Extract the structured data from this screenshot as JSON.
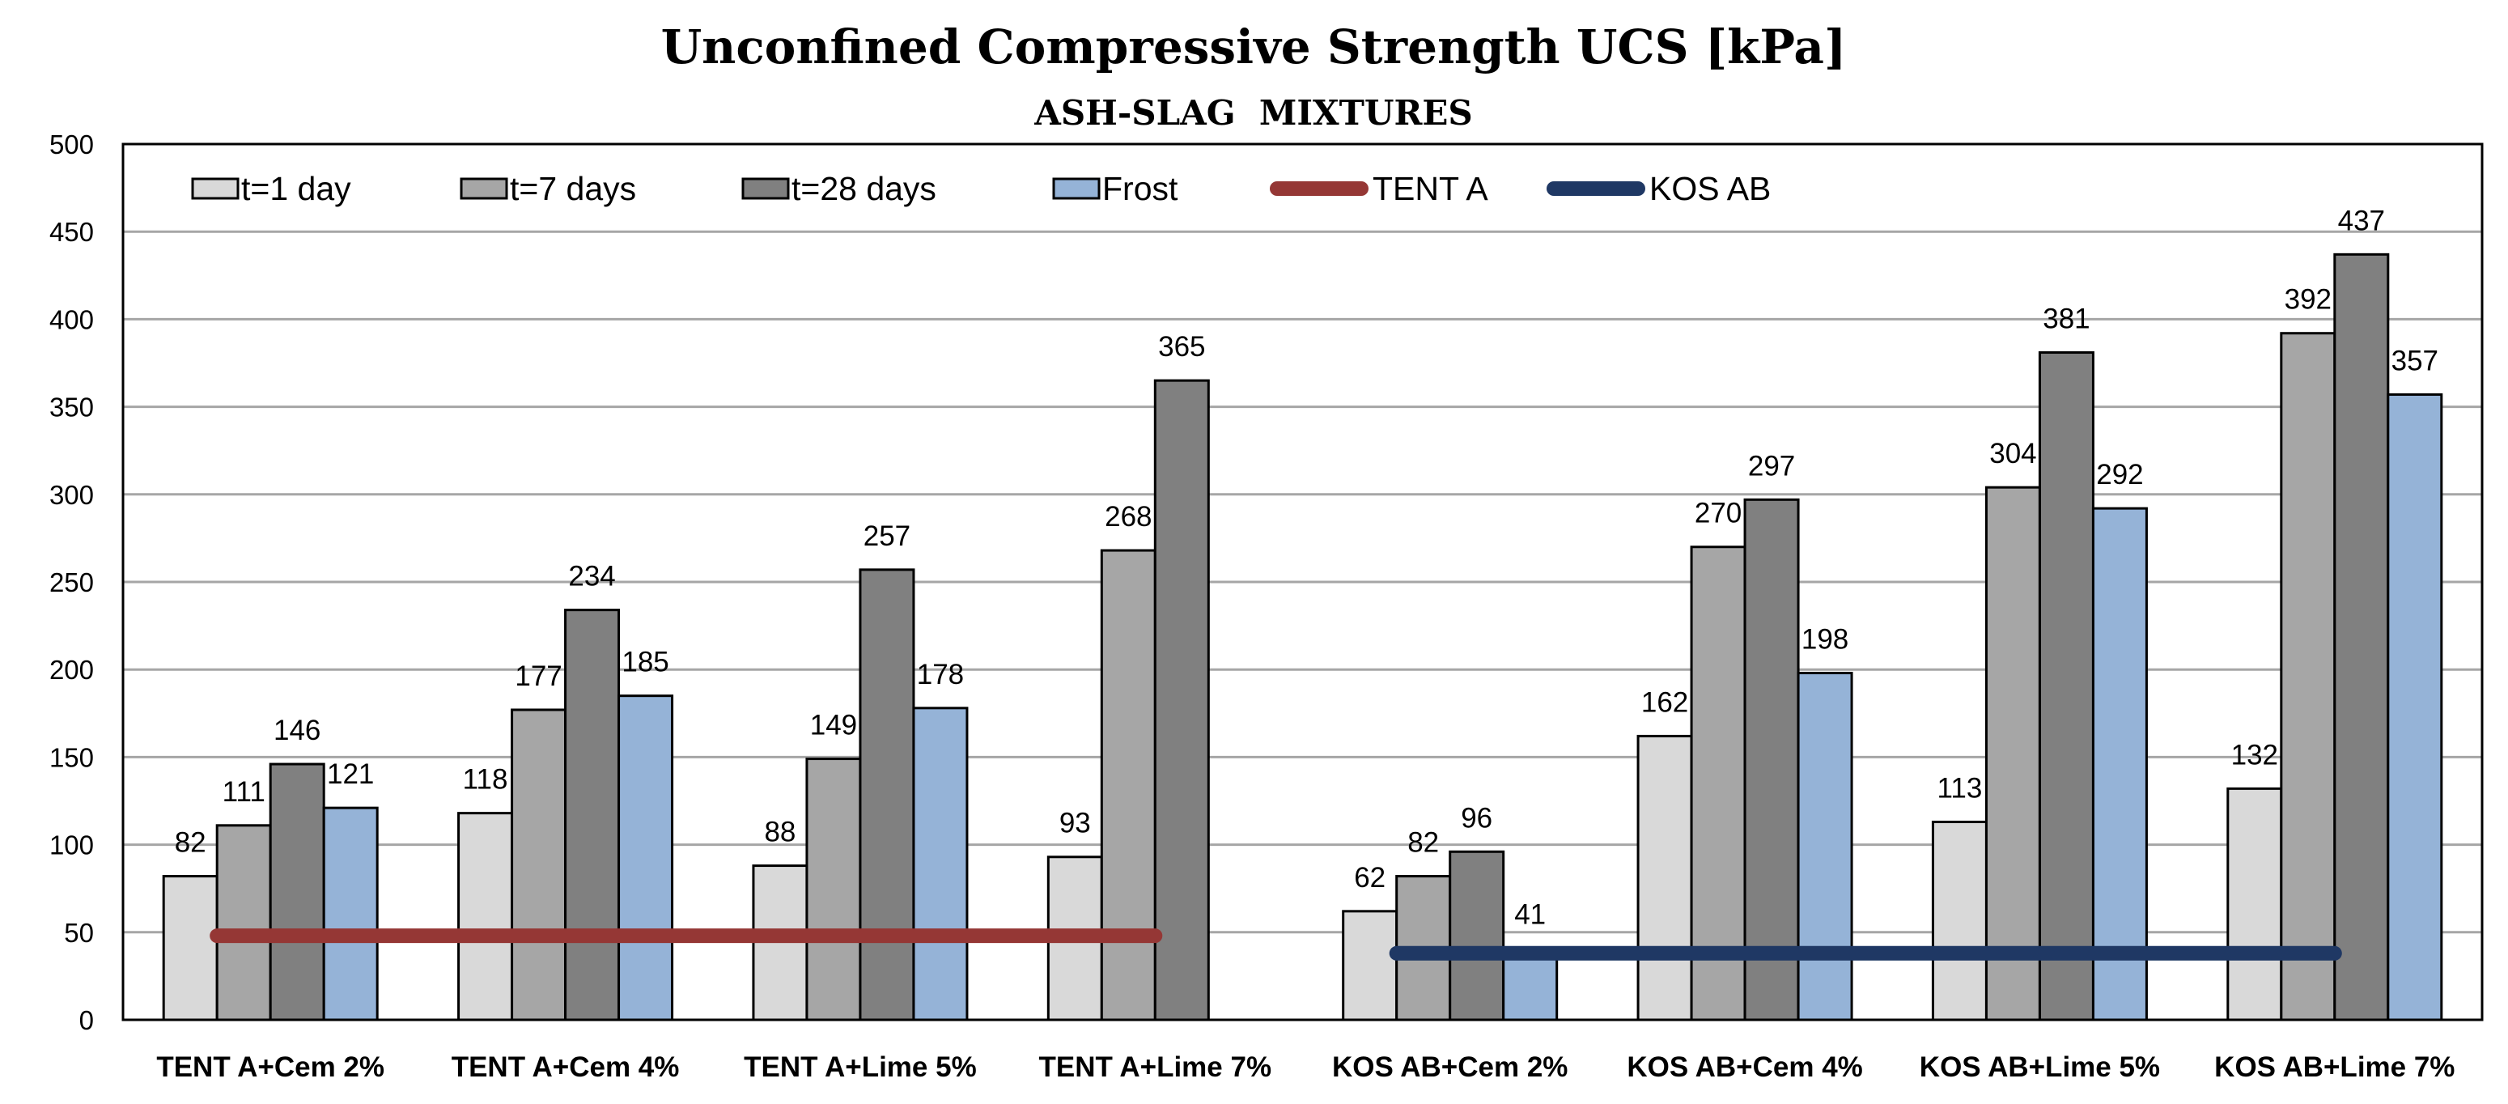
{
  "chart_data": {
    "type": "bar",
    "title": "Unconfined Compressive Strength UCS [kPa]",
    "subtitle": "ASH-SLAG  MIXTURES",
    "xlabel": "",
    "ylabel": "",
    "ylim": [
      0,
      500
    ],
    "yticks": [
      0,
      50,
      100,
      150,
      200,
      250,
      300,
      350,
      400,
      450,
      500
    ],
    "grid": true,
    "legend_position": "top-left",
    "categories": [
      "TENT A+Cem 2%",
      "TENT A+Cem 4%",
      "TENT A+Lime 5%",
      "TENT A+Lime 7%",
      "KOS AB+Cem 2%",
      "KOS AB+Cem 4%",
      "KOS AB+Lime 5%",
      "KOS AB+Lime 7%"
    ],
    "series": [
      {
        "name": "t=1 day",
        "color": "#d9d9d9",
        "values": [
          82,
          118,
          88,
          93,
          62,
          162,
          113,
          132
        ],
        "labels": [
          "82",
          "118",
          "88",
          "93",
          "62",
          "162",
          "113",
          "132"
        ]
      },
      {
        "name": "t=7 days",
        "color": "#a6a6a6",
        "values": [
          111,
          177,
          149,
          268,
          82,
          270,
          304,
          392
        ],
        "labels": [
          "111",
          "177",
          "149",
          "268",
          "82",
          "270",
          "304",
          "392"
        ]
      },
      {
        "name": "t=28 days",
        "color": "#808080",
        "values": [
          146,
          234,
          257,
          365,
          96,
          297,
          381,
          437
        ],
        "labels": [
          "146",
          "234",
          "257",
          "365",
          "96",
          "297",
          "381",
          "437"
        ]
      },
      {
        "name": "Frost",
        "color": "#95b3d7",
        "values": [
          121,
          185,
          178,
          null,
          41,
          198,
          292,
          357
        ],
        "labels": [
          "121",
          "185",
          "178",
          "",
          "41",
          "198",
          "292",
          "357"
        ]
      }
    ],
    "reference_lines": [
      {
        "name": "TENT A",
        "color": "#953735",
        "value": 48,
        "from_category": 0,
        "to_category": 3
      },
      {
        "name": "KOS AB",
        "color": "#1f3864",
        "value": 38,
        "from_category": 4,
        "to_category": 7
      }
    ]
  }
}
